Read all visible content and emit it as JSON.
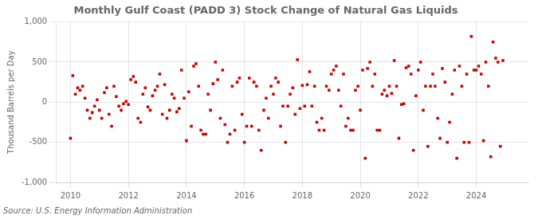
{
  "chart_data": {
    "type": "scatter",
    "title": "Monthly Gulf Coast (PADD 3) Stock Change of Natural Gas Liquids",
    "ylabel": "Thousand Barrels per Day",
    "annotations": [
      "Source: U.S. Energy Information Administration"
    ],
    "color": "#cc0000",
    "marker": "square",
    "grid": true,
    "xlim": [
      2009.5,
      2025.8
    ],
    "xticks": [
      2010,
      2012,
      2014,
      2016,
      2018,
      2020,
      2022,
      2024
    ],
    "ylim": [
      -1000,
      1000
    ],
    "yticks": [
      {
        "value": -1000,
        "label": "-1,000"
      },
      -500,
      0,
      500,
      {
        "value": 1000,
        "label": "1,000"
      }
    ],
    "x": [
      2010.0,
      2010.08,
      2010.17,
      2010.25,
      2010.33,
      2010.42,
      2010.5,
      2010.58,
      2010.67,
      2010.75,
      2010.83,
      2010.92,
      2011.0,
      2011.08,
      2011.17,
      2011.25,
      2011.33,
      2011.42,
      2011.5,
      2011.58,
      2011.67,
      2011.75,
      2011.83,
      2011.92,
      2012.0,
      2012.08,
      2012.17,
      2012.25,
      2012.33,
      2012.42,
      2012.5,
      2012.58,
      2012.67,
      2012.75,
      2012.83,
      2012.92,
      2013.0,
      2013.08,
      2013.17,
      2013.25,
      2013.33,
      2013.42,
      2013.5,
      2013.58,
      2013.67,
      2013.75,
      2013.83,
      2013.92,
      2014.0,
      2014.08,
      2014.17,
      2014.25,
      2014.33,
      2014.42,
      2014.5,
      2014.58,
      2014.67,
      2014.75,
      2014.83,
      2014.92,
      2015.0,
      2015.08,
      2015.17,
      2015.25,
      2015.33,
      2015.42,
      2015.5,
      2015.58,
      2015.67,
      2015.75,
      2015.83,
      2015.92,
      2016.0,
      2016.08,
      2016.17,
      2016.25,
      2016.33,
      2016.42,
      2016.5,
      2016.58,
      2016.67,
      2016.75,
      2016.83,
      2016.92,
      2017.0,
      2017.08,
      2017.17,
      2017.25,
      2017.33,
      2017.42,
      2017.5,
      2017.58,
      2017.67,
      2017.75,
      2017.83,
      2017.92,
      2018.0,
      2018.08,
      2018.17,
      2018.25,
      2018.33,
      2018.42,
      2018.5,
      2018.58,
      2018.67,
      2018.75,
      2018.83,
      2018.92,
      2019.0,
      2019.08,
      2019.17,
      2019.25,
      2019.33,
      2019.42,
      2019.5,
      2019.58,
      2019.67,
      2019.75,
      2019.83,
      2019.92,
      2020.0,
      2020.08,
      2020.17,
      2020.25,
      2020.33,
      2020.42,
      2020.5,
      2020.58,
      2020.67,
      2020.75,
      2020.83,
      2020.92,
      2021.0,
      2021.08,
      2021.17,
      2021.25,
      2021.33,
      2021.42,
      2021.5,
      2021.58,
      2021.67,
      2021.75,
      2021.83,
      2021.92,
      2022.0,
      2022.08,
      2022.17,
      2022.25,
      2022.33,
      2022.42,
      2022.5,
      2022.58,
      2022.67,
      2022.75,
      2022.83,
      2022.92,
      2023.0,
      2023.08,
      2023.17,
      2023.25,
      2023.33,
      2023.42,
      2023.5,
      2023.58,
      2023.67,
      2023.75,
      2023.83,
      2023.92,
      2024.0,
      2024.08,
      2024.17,
      2024.25,
      2024.33,
      2024.42,
      2024.5,
      2024.58,
      2024.67,
      2024.75,
      2024.83,
      2024.92
    ],
    "values": [
      -450,
      330,
      100,
      180,
      150,
      200,
      50,
      -100,
      -200,
      -130,
      -50,
      30,
      -100,
      -200,
      120,
      180,
      -150,
      -300,
      200,
      70,
      -50,
      -100,
      -20,
      10,
      -30,
      280,
      320,
      250,
      -200,
      -250,
      100,
      180,
      -60,
      -100,
      80,
      150,
      200,
      350,
      -150,
      220,
      -200,
      -100,
      100,
      50,
      -120,
      -80,
      400,
      50,
      -480,
      130,
      -300,
      450,
      480,
      200,
      -350,
      -400,
      -400,
      100,
      -100,
      230,
      500,
      280,
      -200,
      400,
      -280,
      -500,
      -400,
      200,
      -350,
      250,
      300,
      -150,
      -500,
      -300,
      300,
      -300,
      250,
      200,
      -350,
      -600,
      -100,
      50,
      -200,
      200,
      100,
      300,
      250,
      -300,
      -50,
      -500,
      -50,
      100,
      180,
      -150,
      530,
      -80,
      210,
      -50,
      220,
      380,
      -50,
      200,
      -250,
      -350,
      -200,
      -350,
      200,
      150,
      350,
      400,
      450,
      150,
      -50,
      350,
      -300,
      -200,
      -350,
      -350,
      150,
      200,
      -100,
      400,
      -700,
      420,
      500,
      200,
      350,
      -350,
      -350,
      100,
      150,
      80,
      200,
      110,
      520,
      200,
      -450,
      -30,
      -20,
      430,
      450,
      350,
      -600,
      80,
      400,
      500,
      -100,
      200,
      -550,
      200,
      350,
      200,
      -200,
      -450,
      420,
      250,
      -500,
      -250,
      100,
      400,
      -700,
      450,
      200,
      -500,
      350,
      -500,
      820,
      400,
      400,
      450,
      350,
      -480,
      500,
      200,
      -680,
      750,
      550,
      500,
      -550,
      520
    ]
  }
}
